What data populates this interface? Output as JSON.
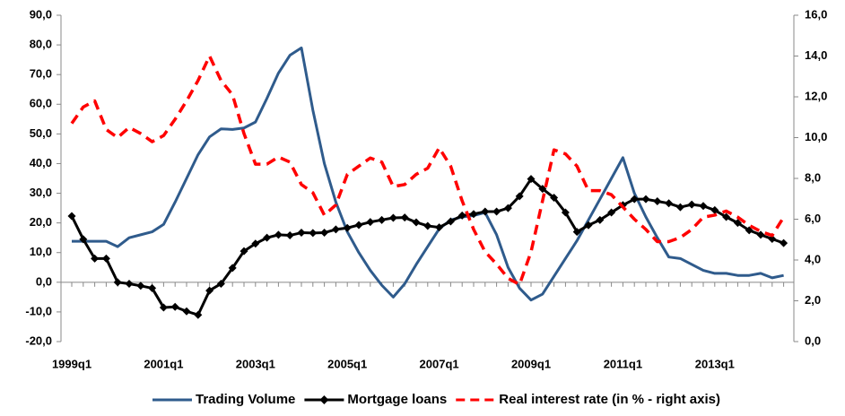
{
  "chart_data": {
    "type": "line",
    "categories": [
      "1999q1",
      null,
      null,
      null,
      null,
      null,
      null,
      null,
      "2001q1",
      null,
      null,
      null,
      null,
      null,
      null,
      null,
      "2003q1",
      null,
      null,
      null,
      null,
      null,
      null,
      null,
      "2005q1",
      null,
      null,
      null,
      null,
      null,
      null,
      null,
      "2007q1",
      null,
      null,
      null,
      null,
      null,
      null,
      null,
      "2009q1",
      null,
      null,
      null,
      null,
      null,
      null,
      null,
      "2011q1",
      null,
      null,
      null,
      null,
      null,
      null,
      null,
      "2013q1",
      null,
      null,
      null,
      null,
      null,
      null
    ],
    "ylim": [
      -20,
      90
    ],
    "yticks": [
      {
        "value": -20,
        "label": "-20,0"
      },
      {
        "value": -10,
        "label": "-10,0"
      },
      {
        "value": 0,
        "label": "0,0"
      },
      {
        "value": 10,
        "label": "10,0"
      },
      {
        "value": 20,
        "label": "20,0"
      },
      {
        "value": 30,
        "label": "30,0"
      },
      {
        "value": 40,
        "label": "40,0"
      },
      {
        "value": 50,
        "label": "50,0"
      },
      {
        "value": 60,
        "label": "60,0"
      },
      {
        "value": 70,
        "label": "70,0"
      },
      {
        "value": 80,
        "label": "80,0"
      },
      {
        "value": 90,
        "label": "90,0"
      }
    ],
    "y2lim": [
      0,
      16
    ],
    "y2ticks": [
      {
        "value": 0,
        "label": "0,0"
      },
      {
        "value": 2,
        "label": "2,0"
      },
      {
        "value": 4,
        "label": "4,0"
      },
      {
        "value": 6,
        "label": "6,0"
      },
      {
        "value": 8,
        "label": "8,0"
      },
      {
        "value": 10,
        "label": "10,0"
      },
      {
        "value": 12,
        "label": "12,0"
      },
      {
        "value": 14,
        "label": "14,0"
      },
      {
        "value": 16,
        "label": "16,0"
      }
    ],
    "legend": "bottom",
    "series": [
      {
        "name": "Trading Volume",
        "color": "#2f5b8c",
        "values": [
          13.8,
          13.8,
          13.8,
          13.8,
          12,
          15,
          16,
          17,
          19.5,
          27,
          35,
          43,
          49,
          51.7,
          51.5,
          52,
          54,
          62,
          70.5,
          76.5,
          79,
          58,
          40,
          27,
          17,
          10,
          4,
          -1,
          -5,
          -0.5,
          6,
          12,
          18,
          21,
          22,
          22.5,
          23.5,
          16,
          5,
          -2,
          -6,
          -4,
          2,
          8,
          14,
          21,
          28,
          35,
          42,
          30,
          22,
          15,
          8.5,
          8,
          6,
          4,
          3,
          3,
          2.3,
          2.3,
          3,
          1.5,
          2.3
        ]
      },
      {
        "name": "Mortgage loans",
        "color": "#000000",
        "marker": "diamond",
        "values": [
          22.3,
          14.5,
          8,
          8,
          0,
          -0.5,
          -1.2,
          -2,
          -8.5,
          -8.3,
          -9.8,
          -11,
          -2.8,
          -0.5,
          4.8,
          10.5,
          13,
          15,
          16,
          15.8,
          16.7,
          16.6,
          16.7,
          17.8,
          18.3,
          19.3,
          20.3,
          21,
          21.7,
          21.8,
          20.2,
          19,
          18.5,
          20.5,
          22.5,
          23,
          23.8,
          23.8,
          25,
          29,
          34.8,
          31.5,
          28.5,
          23.5,
          17,
          19.2,
          21,
          23.5,
          26,
          28,
          28,
          27.3,
          26.6,
          25.3,
          26.2,
          25.7,
          24.3,
          22,
          20,
          17.5,
          16,
          14.6,
          13.2
        ]
      },
      {
        "name": "Real interest rate (in % - right axis)",
        "color": "#ff0000",
        "dashed": true,
        "axis": "y2",
        "values": [
          10.7,
          11.5,
          11.8,
          10.4,
          10.0,
          10.5,
          10.2,
          9.8,
          10.1,
          10.9,
          11.8,
          12.8,
          14.0,
          12.8,
          12.1,
          10.2,
          8.7,
          8.7,
          9.05,
          8.8,
          7.7,
          7.3,
          6.2,
          6.7,
          8.2,
          8.6,
          9.0,
          8.8,
          7.6,
          7.7,
          8.2,
          8.5,
          9.5,
          8.6,
          6.9,
          5.5,
          4.4,
          3.8,
          3.1,
          2.8,
          4.4,
          6.9,
          9.4,
          9.2,
          8.6,
          7.4,
          7.4,
          7.2,
          6.6,
          6.0,
          5.5,
          4.9,
          4.9,
          5.1,
          5.5,
          6.1,
          6.2,
          6.4,
          6.1,
          5.7,
          5.4,
          5.2,
          6.1
        ]
      }
    ]
  }
}
